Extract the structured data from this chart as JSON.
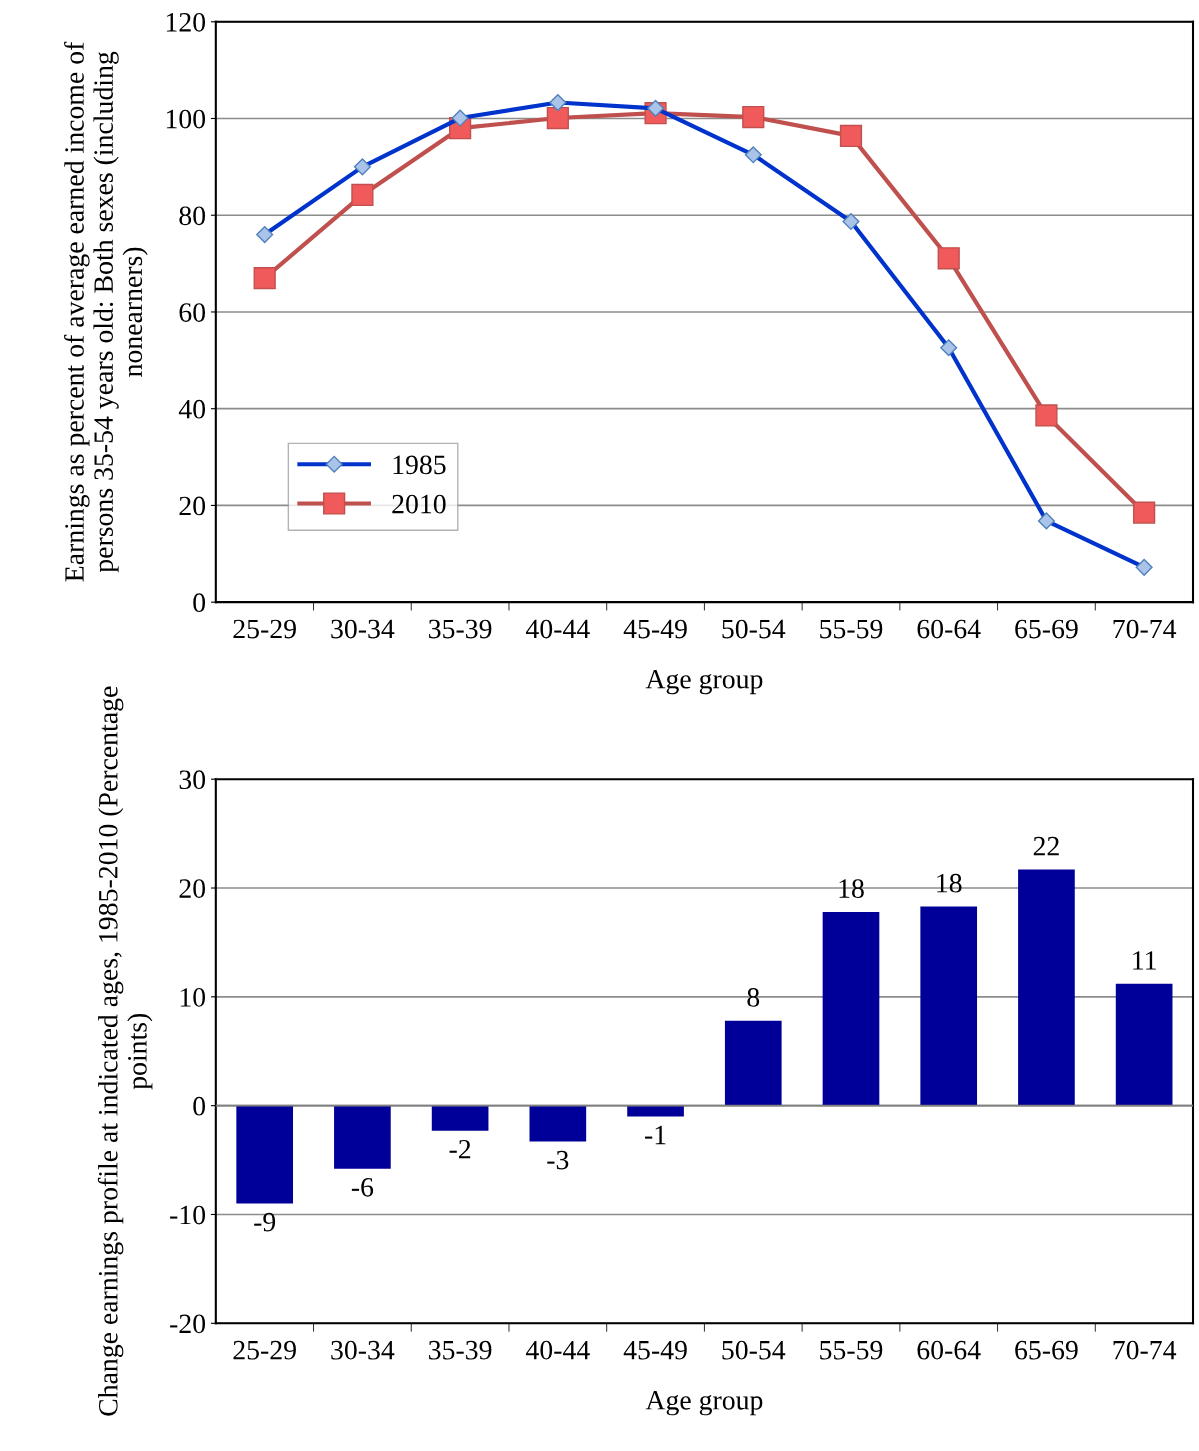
{
  "chart_data": [
    {
      "type": "line",
      "ylabel": "Earnings as percent of average earned income of persons 35-54 years old: Both sexes (including nonearners)",
      "xlabel": "Age group",
      "categories": [
        "25-29",
        "30-34",
        "35-39",
        "40-44",
        "45-49",
        "50-54",
        "55-59",
        "60-64",
        "65-69",
        "70-74"
      ],
      "series": [
        {
          "name": "1985",
          "color": "#0033cc",
          "marker": "diamond",
          "values": [
            76.0,
            90.0,
            100.1,
            103.3,
            102.1,
            92.5,
            78.7,
            52.6,
            16.8,
            7.2
          ]
        },
        {
          "name": "2010",
          "color": "#c0504d",
          "marker": "square",
          "values": [
            67.0,
            84.2,
            98.0,
            100.1,
            101.1,
            100.3,
            96.4,
            71.1,
            38.6,
            18.5
          ]
        }
      ],
      "ylim": [
        0,
        120
      ],
      "yticks": [
        0,
        20,
        40,
        60,
        80,
        100,
        120
      ],
      "grid": "y",
      "legend": "bottom left"
    },
    {
      "type": "bar",
      "ylabel": "Change earnings profile at indicated ages, 1985-2010 (Percentage points)",
      "xlabel": "Age group",
      "categories": [
        "25-29",
        "30-34",
        "35-39",
        "40-44",
        "45-49",
        "50-54",
        "55-59",
        "60-64",
        "65-69",
        "70-74"
      ],
      "values": [
        -9.0,
        -5.8,
        -2.3,
        -3.3,
        -1.0,
        7.8,
        17.8,
        18.3,
        21.7,
        11.2
      ],
      "value_labels": [
        "-9",
        "-6",
        "-2",
        "-3",
        "-1",
        "8",
        "18",
        "18",
        "22",
        "11"
      ],
      "color": "#000099",
      "ylim": [
        -20,
        30
      ],
      "yticks": [
        -20,
        -10,
        0,
        10,
        20,
        30
      ],
      "grid": "y"
    }
  ]
}
